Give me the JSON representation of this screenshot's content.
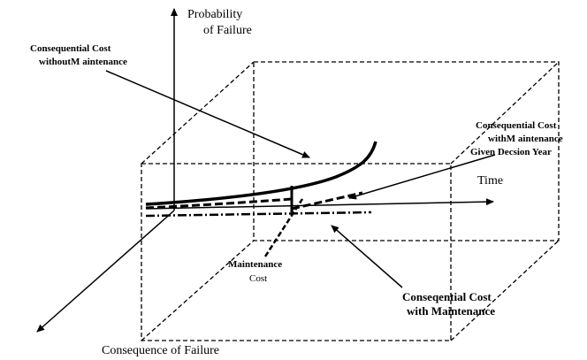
{
  "axes": {
    "vertical": [
      "Probability",
      "of Failure"
    ],
    "horizontal": "Time",
    "depth": "Consequence of Failure"
  },
  "labels": {
    "without_maintenance": [
      "Consequential Cost",
      "withoutM aintenance"
    ],
    "with_maintenance_given_year": [
      "Consequential Cost",
      "withM aintenance",
      "Given Decsion Year"
    ],
    "maintenance_cost": [
      "Maintenance",
      "Cost"
    ],
    "with_maintenance": [
      "Conseqential Cost",
      "with Maintenance"
    ]
  }
}
